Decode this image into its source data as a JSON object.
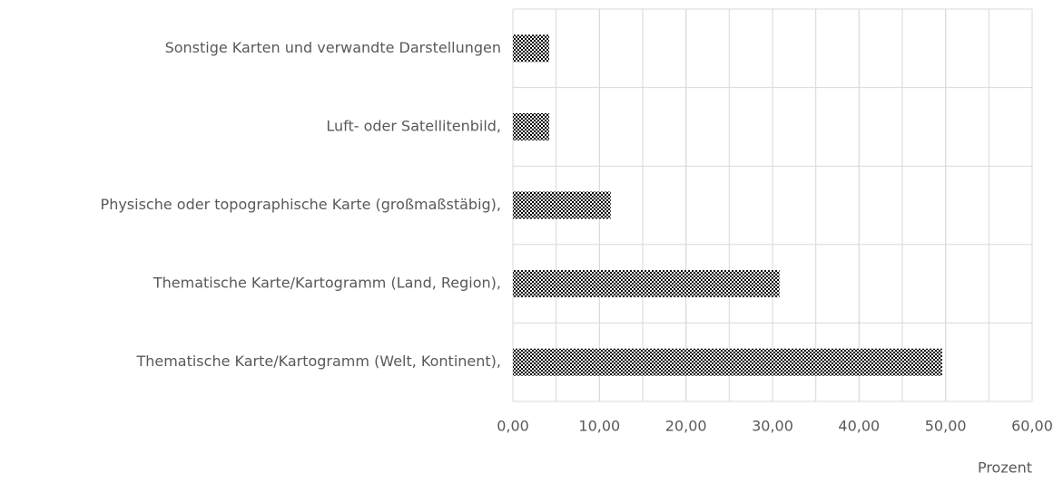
{
  "chart_data": {
    "type": "hbar",
    "categories": [
      "Sonstige Karten und verwandte Darstellungen",
      "Luft- oder Satellitenbild,",
      "Physische oder topographische Karte (großmaßstäbig),",
      "Thematische Karte/Kartogramm (Land, Region),",
      "Thematische Karte/Kartogramm (Welt, Kontinent),"
    ],
    "values": [
      4.2,
      4.2,
      11.3,
      30.8,
      49.6
    ],
    "color": "#000000",
    "xlabel": "Prozent",
    "xlim": [
      0,
      60
    ],
    "xticks": [
      {
        "value": 0,
        "label": "0,00"
      },
      {
        "value": 10,
        "label": "10,00"
      },
      {
        "value": 20,
        "label": "20,00"
      },
      {
        "value": 30,
        "label": "30,00"
      },
      {
        "value": 40,
        "label": "40,00"
      },
      {
        "value": 50,
        "label": "50,00"
      },
      {
        "value": 60,
        "label": "60,00"
      }
    ],
    "minor_grid": 5,
    "grid": true
  }
}
